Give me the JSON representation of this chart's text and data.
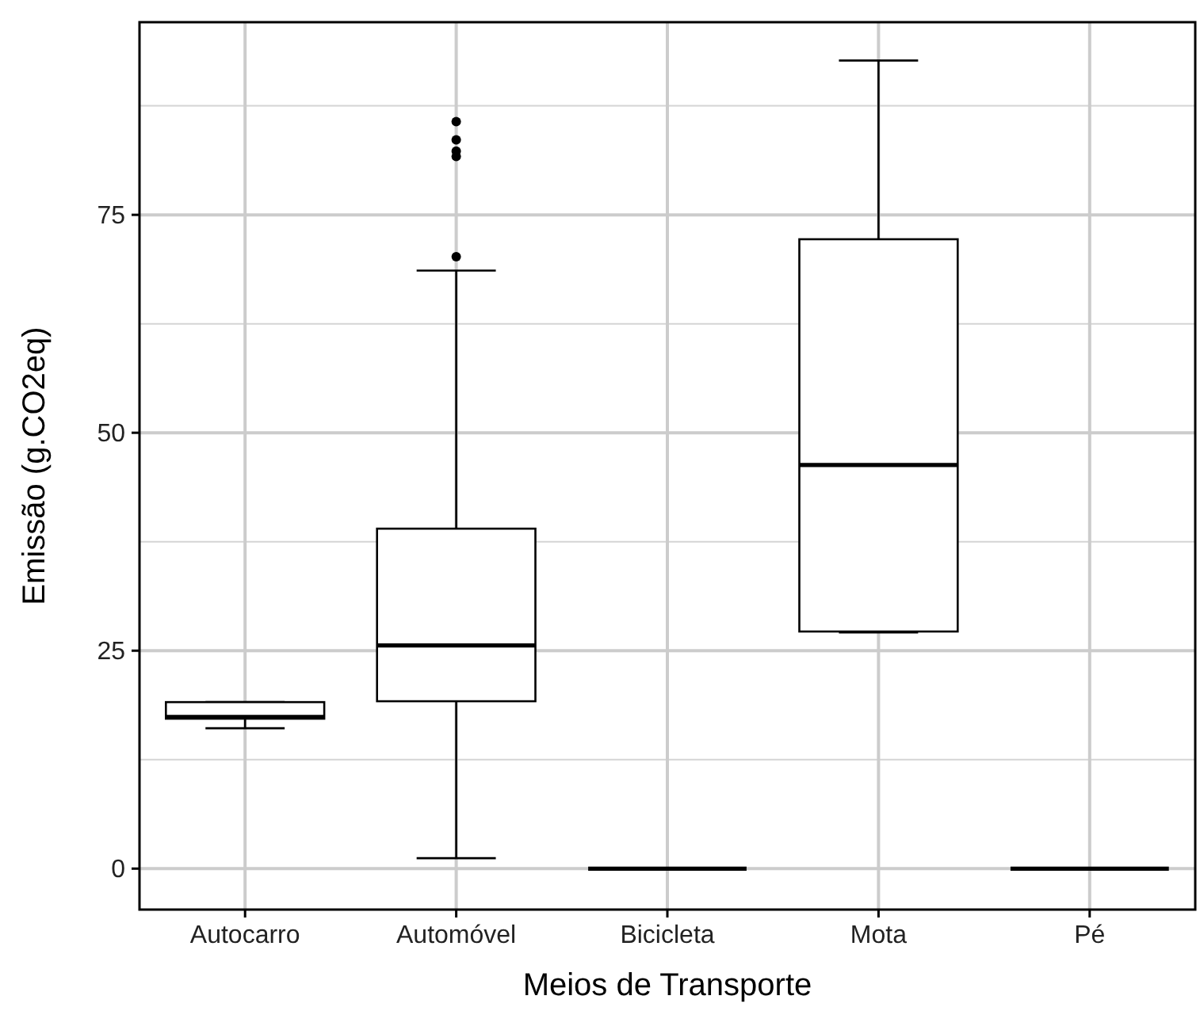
{
  "chart_data": {
    "type": "box",
    "xlabel": "Meios de Transporte",
    "ylabel": "Emissão (g.CO2eq)",
    "categories": [
      "Autocarro",
      "Automóvel",
      "Bicicleta",
      "Mota",
      "Pé"
    ],
    "boxes": [
      {
        "low": 16.1,
        "q1": 17.2,
        "median": 17.4,
        "q3": 19.1,
        "high": 19.1
      },
      {
        "low": 1.2,
        "q1": 19.2,
        "median": 25.6,
        "q3": 39.0,
        "high": 68.6,
        "outliers": [
          70.2,
          81.7,
          82.3,
          83.6,
          85.7
        ]
      },
      {
        "low": 0,
        "q1": 0,
        "median": 0,
        "q3": 0,
        "high": 0
      },
      {
        "low": 27.1,
        "q1": 27.2,
        "median": 46.3,
        "q3": 72.2,
        "high": 92.7
      },
      {
        "low": 0,
        "q1": 0,
        "median": 0,
        "q3": 0,
        "high": 0
      }
    ],
    "ylim": [
      -4.7,
      97.1
    ],
    "yticks": [
      0,
      25,
      50,
      75
    ],
    "grid": true
  }
}
